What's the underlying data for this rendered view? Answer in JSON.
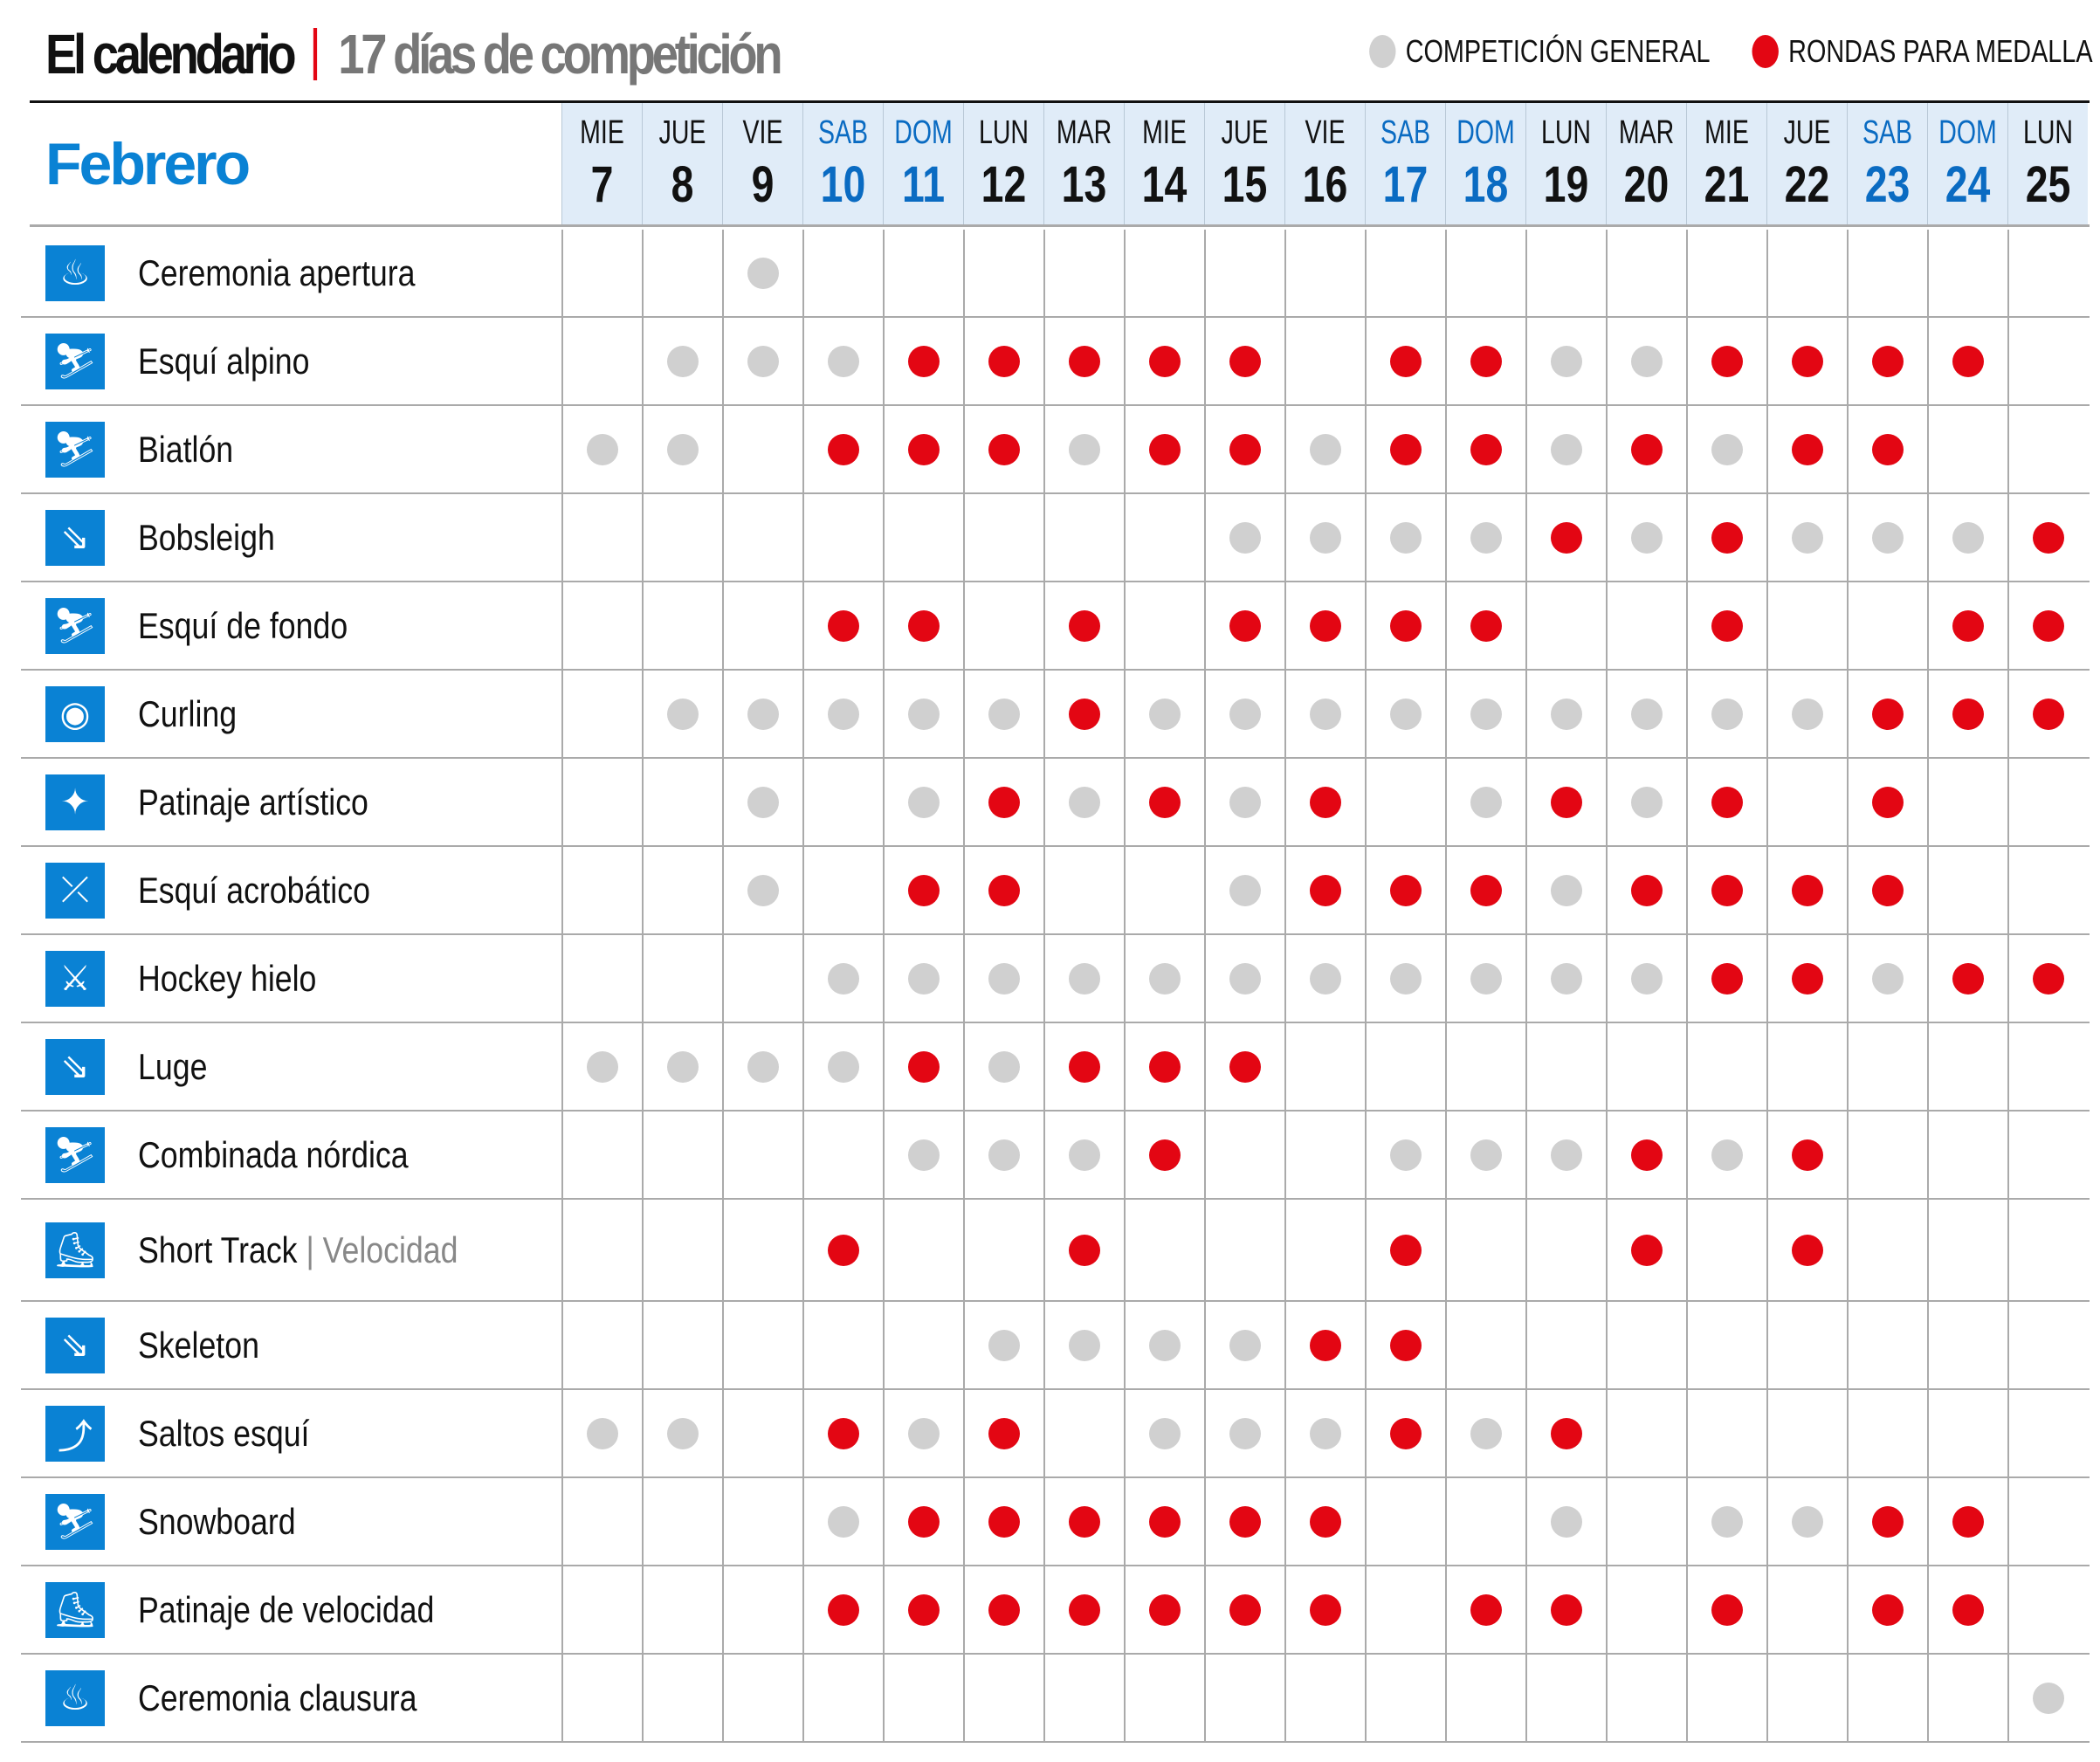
{
  "title": "El calendario",
  "subtitle": "17 días de competición",
  "legend": {
    "general": "COMPETICIÓN GENERAL",
    "medal": "RONDAS PARA MEDALLA"
  },
  "colors": {
    "general": "#d0d0d0",
    "medal": "#e30613",
    "accent": "#0a82d4"
  },
  "month": "Febrero",
  "days": [
    {
      "n": "MIE",
      "d": "7"
    },
    {
      "n": "JUE",
      "d": "8"
    },
    {
      "n": "VIE",
      "d": "9"
    },
    {
      "n": "SAB",
      "d": "10",
      "w": true
    },
    {
      "n": "DOM",
      "d": "11",
      "w": true
    },
    {
      "n": "LUN",
      "d": "12"
    },
    {
      "n": "MAR",
      "d": "13"
    },
    {
      "n": "MIE",
      "d": "14"
    },
    {
      "n": "JUE",
      "d": "15"
    },
    {
      "n": "VIE",
      "d": "16"
    },
    {
      "n": "SAB",
      "d": "17",
      "w": true
    },
    {
      "n": "DOM",
      "d": "18",
      "w": true
    },
    {
      "n": "LUN",
      "d": "19"
    },
    {
      "n": "MAR",
      "d": "20"
    },
    {
      "n": "MIE",
      "d": "21"
    },
    {
      "n": "JUE",
      "d": "22"
    },
    {
      "n": "SAB",
      "d": "23",
      "w": true
    },
    {
      "n": "DOM",
      "d": "24",
      "w": true
    },
    {
      "n": "LUN",
      "d": "25"
    }
  ],
  "sports": [
    {
      "name": "Ceremonia apertura",
      "icon": "torch-icon",
      "s": "..g................"
    },
    {
      "name": "Esquí alpino",
      "icon": "alpine-ski-icon",
      "s": ".gggrrrrr.rrggrrrr."
    },
    {
      "name": "Biatlón",
      "icon": "biathlon-icon",
      "s": "gg.rrrgrrgrrgrgrr.."
    },
    {
      "name": "Bobsleigh",
      "icon": "bobsleigh-icon",
      "s": "........ggggrgrgggr"
    },
    {
      "name": "Esquí de fondo",
      "icon": "cross-country-icon",
      "s": "...rr.r.rrrr..r..rr"
    },
    {
      "name": "Curling",
      "icon": "curling-icon",
      "s": ".gggggrgggggggggrrr"
    },
    {
      "name": "Patinaje artístico",
      "icon": "figure-skating-icon",
      "s": "..g.grgrgr.grgr.r.."
    },
    {
      "name": "Esquí acrobático",
      "icon": "freestyle-ski-icon",
      "s": "..g.rr..grrrgrrrr.."
    },
    {
      "name": "Hockey hielo",
      "icon": "hockey-icon",
      "s": "...gggggggggggrrgrr"
    },
    {
      "name": "Luge",
      "icon": "luge-icon",
      "s": "ggggrgrrr.........."
    },
    {
      "name": "Combinada nórdica",
      "icon": "nordic-combined-icon",
      "s": "....gggr..gggrgr..."
    },
    {
      "name": "Short Track",
      "sub": "Velocidad",
      "icon": "short-track-icon",
      "s": "...r..r...r..r.r..."
    },
    {
      "name": "Skeleton",
      "icon": "skeleton-icon",
      "s": ".....ggggrr........"
    },
    {
      "name": "Saltos esquí",
      "icon": "ski-jumping-icon",
      "s": "gg.rgr.gggrgr......"
    },
    {
      "name": "Snowboard",
      "icon": "snowboard-icon",
      "s": "...grrrrrr..g.ggrr."
    },
    {
      "name": "Patinaje de velocidad",
      "icon": "speed-skating-icon",
      "s": "...rrrrrrr.rr.r.rr."
    },
    {
      "name": "Ceremonia clausura",
      "icon": "torch-icon",
      "s": "..................g"
    }
  ]
}
